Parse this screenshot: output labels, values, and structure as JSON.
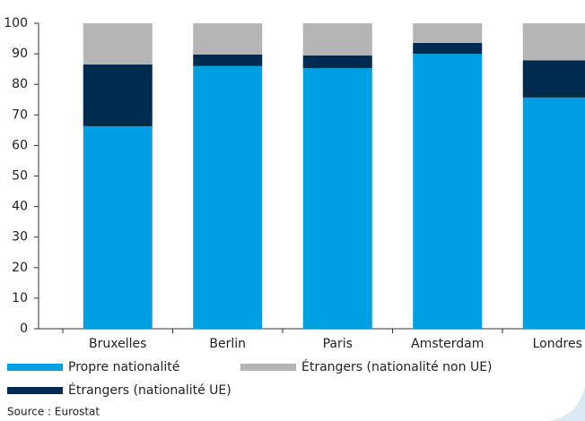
{
  "chart_data": {
    "type": "stacked_bar",
    "categories": [
      "Bruxelles",
      "Berlin",
      "Paris",
      "Amsterdam",
      "Londres"
    ],
    "series": [
      {
        "name": "Propre nationalité",
        "color": "#009fe3",
        "values": [
          66.3,
          86,
          85.3,
          90,
          75.7
        ]
      },
      {
        "name": "Étrangers (nationalité UE)",
        "color": "#002b50",
        "values": [
          20.2,
          3.8,
          4.2,
          3.6,
          12.2
        ]
      },
      {
        "name": "Étrangers (nationalité non UE)",
        "color": "#b5b5b5",
        "values": [
          13.5,
          10.2,
          10.5,
          6.4,
          12.1
        ]
      }
    ],
    "ylim": [
      0,
      100
    ],
    "yticks": [
      0,
      10,
      20,
      30,
      40,
      50,
      60,
      70,
      80,
      90,
      100
    ],
    "source": "Source : Eurostat"
  }
}
